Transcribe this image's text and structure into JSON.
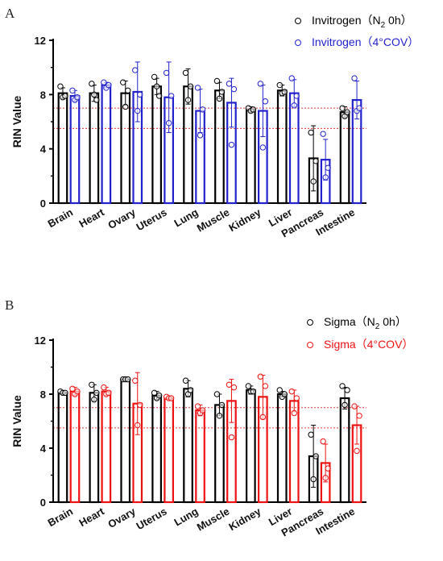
{
  "chart_data": [
    {
      "panel": "A",
      "type": "bar",
      "ylabel": "RIN Value",
      "ylim": [
        0,
        12
      ],
      "yticks": [
        0,
        4,
        8,
        12
      ],
      "categories": [
        "Brain",
        "Heart",
        "Ovary",
        "Uterus",
        "Lung",
        "Muscle",
        "Kidney",
        "Liver",
        "Pancreas",
        "Intestine"
      ],
      "reference_lines": [
        7.0,
        5.5
      ],
      "legend_position": "top-right",
      "series": [
        {
          "name": "Invitrogen（N₂ 0h）",
          "name_prefix": "Invitrogen（N",
          "name_sub": "2",
          "name_suffix": " 0h）",
          "color": "#000000",
          "values": [
            8.1,
            8.1,
            8.1,
            8.6,
            8.6,
            8.3,
            6.9,
            8.3,
            3.3,
            6.7
          ],
          "errors": [
            0.4,
            0.6,
            0.9,
            0.6,
            1.3,
            0.6,
            0.2,
            0.4,
            2.4,
            0.4
          ],
          "points": [
            [
              8.6,
              7.8,
              7.9
            ],
            [
              8.8,
              8.0,
              7.6
            ],
            [
              8.9,
              7.1,
              8.3
            ],
            [
              9.3,
              8.6,
              7.9
            ],
            [
              9.6,
              7.6,
              8.6
            ],
            [
              9.0,
              7.7,
              8.2
            ],
            [
              7.0,
              6.8,
              6.9
            ],
            [
              8.7,
              8.1,
              8.2
            ],
            [
              5.2,
              1.6,
              3.1
            ],
            [
              7.0,
              6.4,
              6.7
            ]
          ]
        },
        {
          "name": "Invitrogen（4°COV）",
          "name_prefix": "Invitrogen（4°COV）",
          "name_sub": "",
          "name_suffix": "",
          "color": "#2222cc",
          "values": [
            7.9,
            8.7,
            8.2,
            7.8,
            6.8,
            7.4,
            6.8,
            8.1,
            3.2,
            7.6
          ],
          "errors": [
            0.4,
            0.2,
            2.2,
            2.6,
            1.6,
            1.8,
            1.9,
            1.0,
            1.5,
            1.4
          ],
          "points": [
            [
              8.3,
              7.6,
              7.8
            ],
            [
              8.9,
              8.5,
              8.7
            ],
            [
              9.8,
              6.8,
              8.0
            ],
            [
              9.6,
              5.9,
              7.9
            ],
            [
              8.5,
              5.0,
              6.9
            ],
            [
              8.8,
              4.3,
              8.4
            ],
            [
              8.8,
              4.1,
              7.5
            ],
            [
              9.2,
              7.2,
              7.9
            ],
            [
              5.1,
              1.9,
              2.6
            ],
            [
              9.2,
              6.8,
              7.0
            ]
          ]
        }
      ]
    },
    {
      "panel": "B",
      "type": "bar",
      "ylabel": "RIN Value",
      "ylim": [
        0,
        12
      ],
      "yticks": [
        0,
        4,
        8,
        12
      ],
      "categories": [
        "Brain",
        "Heart",
        "Ovary",
        "Uterus",
        "Lung",
        "Muscle",
        "Kidney",
        "Liver",
        "Pancreas",
        "Intestine"
      ],
      "reference_lines": [
        7.0,
        5.5
      ],
      "legend_position": "top-right",
      "series": [
        {
          "name": "Sigma（N₂ 0h）",
          "name_prefix": "Sigma（N",
          "name_sub": "2",
          "name_suffix": " 0h）",
          "color": "#000000",
          "values": [
            8.1,
            8.1,
            9.1,
            7.9,
            8.4,
            7.2,
            8.3,
            8.0,
            3.4,
            7.7
          ],
          "errors": [
            0.1,
            0.6,
            0.1,
            0.3,
            0.6,
            0.8,
            0.3,
            0.2,
            2.3,
            0.8
          ],
          "points": [
            [
              8.2,
              8.1,
              8.1
            ],
            [
              8.7,
              7.6,
              8.1
            ],
            [
              9.1,
              9.1,
              9.1
            ],
            [
              8.1,
              7.7,
              7.9
            ],
            [
              9.0,
              8.0,
              8.3
            ],
            [
              8.0,
              6.4,
              7.2
            ],
            [
              8.6,
              8.2,
              8.2
            ],
            [
              8.3,
              7.8,
              8.0
            ],
            [
              5.0,
              1.7,
              3.4
            ],
            [
              8.6,
              7.2,
              8.3
            ]
          ]
        },
        {
          "name": "Sigma（4°COV）",
          "name_prefix": "Sigma（4°COV）",
          "name_sub": "",
          "name_suffix": "",
          "color": "#ee1111",
          "values": [
            8.2,
            8.2,
            7.3,
            7.7,
            6.8,
            7.5,
            7.8,
            7.5,
            2.9,
            5.7
          ],
          "errors": [
            0.3,
            0.3,
            2.3,
            0.1,
            0.4,
            1.6,
            1.6,
            0.8,
            1.4,
            1.4
          ],
          "points": [
            [
              8.4,
              8.0,
              8.2
            ],
            [
              8.5,
              8.0,
              8.1
            ],
            [
              9.0,
              5.7,
              7.2
            ],
            [
              7.8,
              7.7,
              7.7
            ],
            [
              7.1,
              6.6,
              6.8
            ],
            [
              8.7,
              4.8,
              8.5
            ],
            [
              9.3,
              6.3,
              8.6
            ],
            [
              8.2,
              6.6,
              7.7
            ],
            [
              4.5,
              1.8,
              2.5
            ],
            [
              7.1,
              3.8,
              6.4
            ]
          ]
        }
      ]
    }
  ]
}
